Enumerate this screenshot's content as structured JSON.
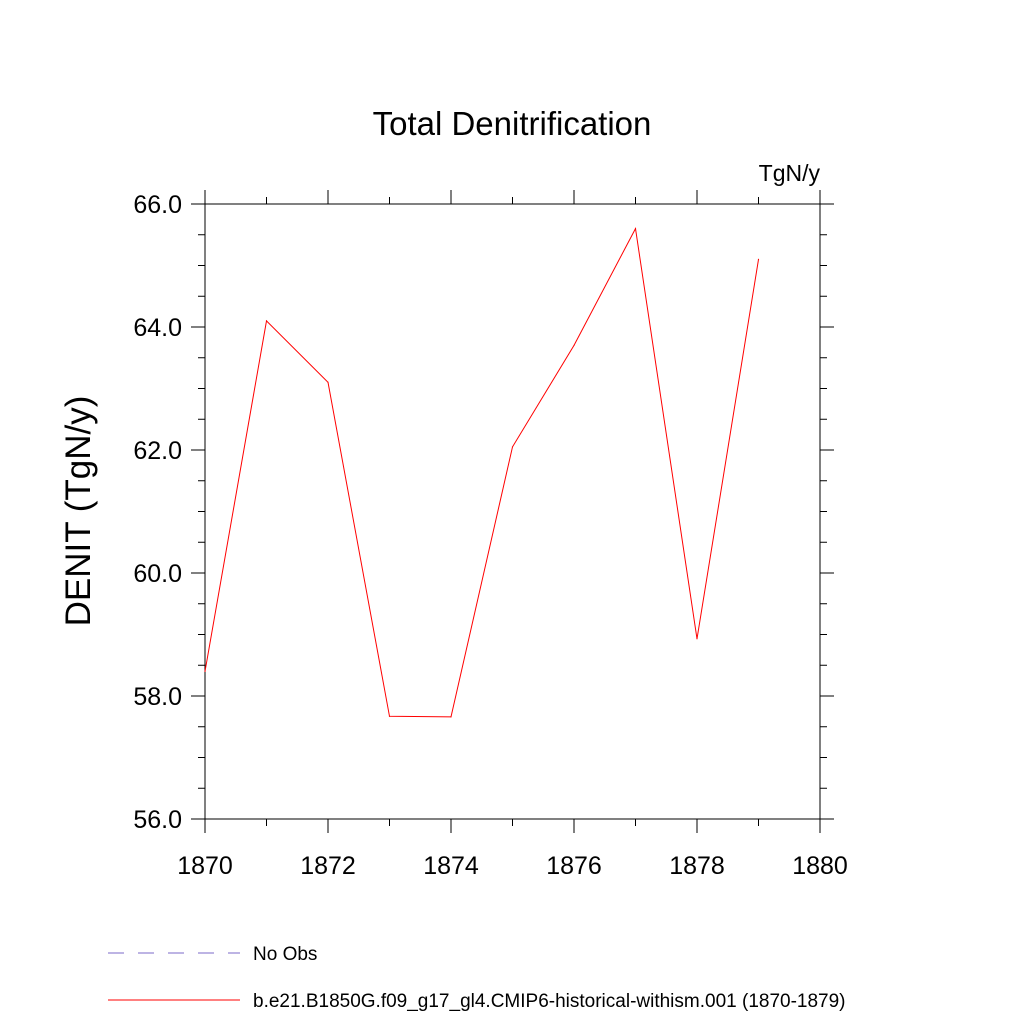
{
  "chart_data": {
    "type": "line",
    "title": "Total Denitrification",
    "units": "TgN/y",
    "ylabel": "DENIT  (TgN/y)",
    "xlabel": "",
    "xlim": [
      1870,
      1880
    ],
    "ylim": [
      56,
      66
    ],
    "xticks": [
      1870,
      1872,
      1874,
      1876,
      1878,
      1880
    ],
    "yticks": [
      56,
      58,
      60,
      62,
      64,
      66
    ],
    "ytick_labels": [
      "56.0",
      "58.0",
      "60.0",
      "62.0",
      "64.0",
      "66.0"
    ],
    "grid": false,
    "legend_position": "bottom-left",
    "series": [
      {
        "name": "b.e21.B1850G.f09_g17_gl4.CMIP6-historical-withism.001 (1870-1879)",
        "color": "#ff0000",
        "style": "solid",
        "x": [
          1870,
          1871,
          1872,
          1873,
          1874,
          1875,
          1876,
          1877,
          1878,
          1879
        ],
        "values": [
          58.4,
          64.1,
          63.1,
          57.67,
          57.66,
          62.05,
          63.7,
          65.6,
          58.93,
          65.1
        ]
      }
    ],
    "legend": [
      {
        "label": "No Obs",
        "color": "#7b68c8",
        "style": "dashed"
      },
      {
        "label": "b.e21.B1850G.f09_g17_gl4.CMIP6-historical-withism.001 (1870-1879)",
        "color": "#ff0000",
        "style": "solid"
      }
    ]
  }
}
